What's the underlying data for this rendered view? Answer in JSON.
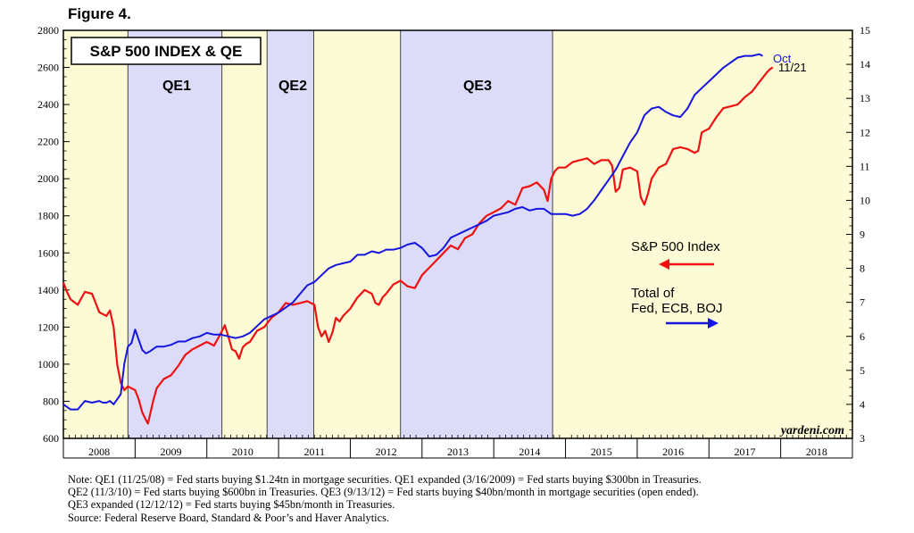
{
  "figure_label": "Figure 4.",
  "chart_data": {
    "type": "line",
    "title": "S&P 500 INDEX & QE",
    "x_ticks": [
      "2008",
      "2009",
      "2010",
      "2011",
      "2012",
      "2013",
      "2014",
      "2015",
      "2016",
      "2017",
      "2018"
    ],
    "x_range": [
      2008.0,
      2019.0
    ],
    "left_axis": {
      "ticks": [
        600,
        800,
        1000,
        1200,
        1400,
        1600,
        1800,
        2000,
        2200,
        2400,
        2600,
        2800
      ],
      "range": [
        600,
        2800
      ]
    },
    "right_axis": {
      "ticks": [
        3,
        4,
        5,
        6,
        7,
        8,
        9,
        10,
        11,
        12,
        13,
        14,
        15
      ],
      "range": [
        3,
        15
      ]
    },
    "grid": false,
    "background_color": "#fdfbd6",
    "qe_periods": [
      {
        "label": "QE1",
        "start": 2008.9,
        "end": 2010.21,
        "color": "#dcdcf8"
      },
      {
        "label": "QE2",
        "start": 2010.84,
        "end": 2011.49,
        "color": "#dcdcf8"
      },
      {
        "label": "QE3",
        "start": 2012.7,
        "end": 2014.82,
        "color": "#dcdcf8"
      }
    ],
    "series": [
      {
        "name": "S&P 500 Index",
        "axis": "left",
        "color": "#ee1111",
        "x": [
          2008.0,
          2008.05,
          2008.1,
          2008.2,
          2008.3,
          2008.4,
          2008.5,
          2008.55,
          2008.6,
          2008.65,
          2008.7,
          2008.75,
          2008.8,
          2008.85,
          2008.9,
          2009.0,
          2009.05,
          2009.1,
          2009.15,
          2009.18,
          2009.25,
          2009.3,
          2009.4,
          2009.5,
          2009.6,
          2009.7,
          2009.8,
          2009.9,
          2010.0,
          2010.1,
          2010.2,
          2010.25,
          2010.3,
          2010.35,
          2010.4,
          2010.45,
          2010.5,
          2010.55,
          2010.6,
          2010.7,
          2010.8,
          2010.9,
          2011.0,
          2011.1,
          2011.2,
          2011.3,
          2011.4,
          2011.5,
          2011.55,
          2011.6,
          2011.65,
          2011.7,
          2011.75,
          2011.8,
          2011.85,
          2011.9,
          2012.0,
          2012.1,
          2012.2,
          2012.3,
          2012.35,
          2012.4,
          2012.45,
          2012.5,
          2012.6,
          2012.7,
          2012.8,
          2012.9,
          2013.0,
          2013.1,
          2013.2,
          2013.3,
          2013.4,
          2013.5,
          2013.6,
          2013.7,
          2013.8,
          2013.9,
          2014.0,
          2014.1,
          2014.2,
          2014.3,
          2014.4,
          2014.5,
          2014.6,
          2014.7,
          2014.75,
          2014.8,
          2014.85,
          2014.9,
          2015.0,
          2015.1,
          2015.2,
          2015.3,
          2015.4,
          2015.5,
          2015.6,
          2015.65,
          2015.7,
          2015.75,
          2015.8,
          2015.9,
          2016.0,
          2016.05,
          2016.1,
          2016.15,
          2016.2,
          2016.3,
          2016.4,
          2016.5,
          2016.6,
          2016.7,
          2016.8,
          2016.85,
          2016.9,
          2017.0,
          2017.1,
          2017.2,
          2017.3,
          2017.4,
          2017.5,
          2017.6,
          2017.7,
          2017.8,
          2017.85,
          2017.89
        ],
        "values": [
          1440,
          1390,
          1350,
          1320,
          1390,
          1380,
          1280,
          1270,
          1260,
          1290,
          1200,
          1000,
          900,
          860,
          880,
          860,
          810,
          740,
          700,
          680,
          800,
          870,
          920,
          940,
          990,
          1050,
          1080,
          1100,
          1120,
          1100,
          1170,
          1210,
          1150,
          1080,
          1070,
          1030,
          1090,
          1110,
          1120,
          1180,
          1200,
          1250,
          1280,
          1330,
          1320,
          1330,
          1340,
          1320,
          1200,
          1150,
          1180,
          1120,
          1170,
          1250,
          1230,
          1260,
          1300,
          1360,
          1400,
          1380,
          1330,
          1320,
          1360,
          1380,
          1430,
          1450,
          1420,
          1410,
          1480,
          1520,
          1560,
          1600,
          1640,
          1620,
          1680,
          1700,
          1760,
          1800,
          1820,
          1840,
          1880,
          1860,
          1950,
          1960,
          1980,
          1940,
          1880,
          2000,
          2040,
          2060,
          2060,
          2090,
          2100,
          2110,
          2080,
          2100,
          2100,
          2070,
          1930,
          1950,
          2050,
          2060,
          2040,
          1900,
          1860,
          1920,
          2000,
          2060,
          2080,
          2160,
          2170,
          2160,
          2140,
          2150,
          2250,
          2270,
          2330,
          2380,
          2390,
          2400,
          2440,
          2470,
          2520,
          2570,
          2590,
          2600
        ]
      },
      {
        "name": "Total of Fed, ECB, BOJ",
        "axis": "right",
        "color": "#1515dd",
        "x": [
          2008.0,
          2008.1,
          2008.2,
          2008.3,
          2008.4,
          2008.5,
          2008.55,
          2008.6,
          2008.65,
          2008.7,
          2008.8,
          2008.85,
          2008.9,
          2008.95,
          2009.0,
          2009.1,
          2009.15,
          2009.2,
          2009.3,
          2009.4,
          2009.5,
          2009.6,
          2009.7,
          2009.8,
          2009.9,
          2010.0,
          2010.1,
          2010.2,
          2010.3,
          2010.4,
          2010.5,
          2010.6,
          2010.7,
          2010.8,
          2010.9,
          2011.0,
          2011.1,
          2011.2,
          2011.3,
          2011.4,
          2011.5,
          2011.6,
          2011.7,
          2011.8,
          2011.9,
          2012.0,
          2012.1,
          2012.2,
          2012.3,
          2012.4,
          2012.5,
          2012.6,
          2012.7,
          2012.8,
          2012.9,
          2013.0,
          2013.1,
          2013.2,
          2013.3,
          2013.4,
          2013.5,
          2013.6,
          2013.7,
          2013.8,
          2013.9,
          2014.0,
          2014.1,
          2014.2,
          2014.3,
          2014.4,
          2014.5,
          2014.6,
          2014.7,
          2014.8,
          2014.9,
          2015.0,
          2015.1,
          2015.2,
          2015.3,
          2015.4,
          2015.5,
          2015.6,
          2015.7,
          2015.8,
          2015.9,
          2016.0,
          2016.1,
          2016.2,
          2016.3,
          2016.4,
          2016.5,
          2016.6,
          2016.7,
          2016.8,
          2016.9,
          2017.0,
          2017.1,
          2017.2,
          2017.3,
          2017.4,
          2017.5,
          2017.6,
          2017.7,
          2017.75
        ],
        "values": [
          4.0,
          3.85,
          3.85,
          4.1,
          4.05,
          4.1,
          4.05,
          4.05,
          4.1,
          4.0,
          4.3,
          5.2,
          5.7,
          5.8,
          6.2,
          5.6,
          5.5,
          5.55,
          5.7,
          5.7,
          5.75,
          5.85,
          5.85,
          5.95,
          6.0,
          6.1,
          6.05,
          6.05,
          6.0,
          5.95,
          6.0,
          6.1,
          6.3,
          6.5,
          6.6,
          6.7,
          6.85,
          7.0,
          7.25,
          7.5,
          7.6,
          7.8,
          8.0,
          8.1,
          8.15,
          8.2,
          8.4,
          8.4,
          8.5,
          8.45,
          8.55,
          8.55,
          8.6,
          8.7,
          8.75,
          8.6,
          8.35,
          8.4,
          8.6,
          8.9,
          9.0,
          9.1,
          9.2,
          9.3,
          9.4,
          9.55,
          9.6,
          9.65,
          9.75,
          9.8,
          9.7,
          9.75,
          9.75,
          9.6,
          9.6,
          9.6,
          9.55,
          9.6,
          9.75,
          10.0,
          10.3,
          10.6,
          10.9,
          11.3,
          11.7,
          12.0,
          12.5,
          12.7,
          12.75,
          12.6,
          12.5,
          12.45,
          12.7,
          13.1,
          13.3,
          13.5,
          13.7,
          13.9,
          14.05,
          14.2,
          14.25,
          14.25,
          14.3,
          14.25
        ]
      }
    ],
    "annotations": {
      "qe1": "QE1",
      "qe2": "QE2",
      "qe3": "QE3",
      "sp_end": "11/21",
      "bal_end": "Oct",
      "source_mark": "yardeni.com",
      "legend_sp": "S&P 500 Index",
      "legend_bal_line1": "Total of",
      "legend_bal_line2": "Fed, ECB, BOJ"
    }
  },
  "notes": [
    "Note: QE1 (11/25/08) = Fed starts buying $1.24tn in mortgage securities. QE1 expanded (3/16/2009) = Fed starts buying $300bn in Treasuries.",
    "QE2 (11/3/10) = Fed starts buying $600bn in Treasuries. QE3 (9/13/12) = Fed starts buying $40bn/month in mortgage securities (open ended).",
    "QE3 expanded (12/12/12) = Fed starts buying $45bn/month in Treasuries.",
    "Source: Federal Reserve Board, Standard & Poor’s and Haver Analytics."
  ]
}
